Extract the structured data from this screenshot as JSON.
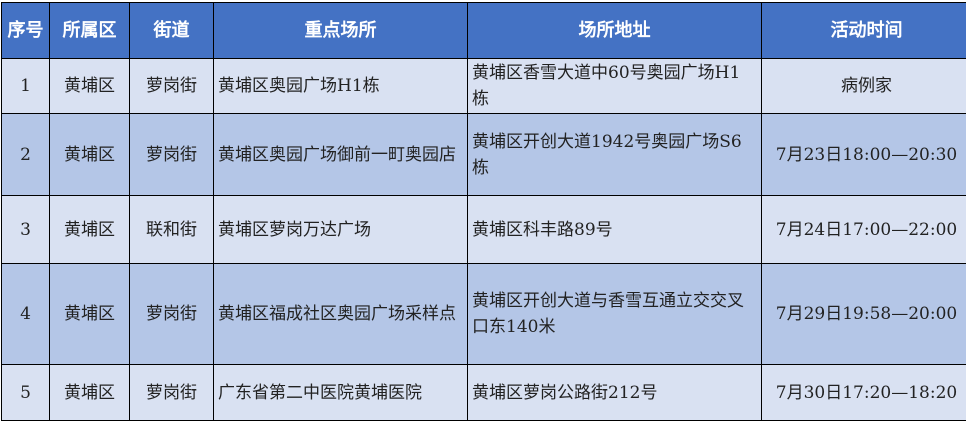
{
  "colors": {
    "header": "#4472C4",
    "row_light": "#D9E1F2",
    "row_dark": "#B4C6E7"
  },
  "headers": [
    "序号",
    "所属区",
    "街道",
    "重点场所",
    "场所地址",
    "活动时间"
  ],
  "rows": [
    {
      "no": "1",
      "district": "黄埔区",
      "street": "萝岗街",
      "place": "黄埔区奥园广场H1栋",
      "address": "黄埔区香雪大道中60号奥园广场H1栋",
      "time": "病例家"
    },
    {
      "no": "2",
      "district": "黄埔区",
      "street": "萝岗街",
      "place": "黄埔区奥园广场御前一町奥园店",
      "address": "黄埔区开创大道1942号奥园广场S6栋",
      "time": "7月23日18:00—20:30"
    },
    {
      "no": "3",
      "district": "黄埔区",
      "street": "联和街",
      "place": "黄埔区萝岗万达广场",
      "address": "黄埔区科丰路89号",
      "time": "7月24日17:00—22:00"
    },
    {
      "no": "4",
      "district": "黄埔区",
      "street": "萝岗街",
      "place": "黄埔区福成社区奥园广场采样点",
      "address": "黄埔区开创大道与香雪互通立交交叉口东140米",
      "time": "7月29日19:58—20:00"
    },
    {
      "no": "5",
      "district": "黄埔区",
      "street": "萝岗街",
      "place": "广东省第二中医院黄埔医院",
      "address": "黄埔区萝岗公路街212号",
      "time": "7月30日17:20—18:20"
    }
  ]
}
